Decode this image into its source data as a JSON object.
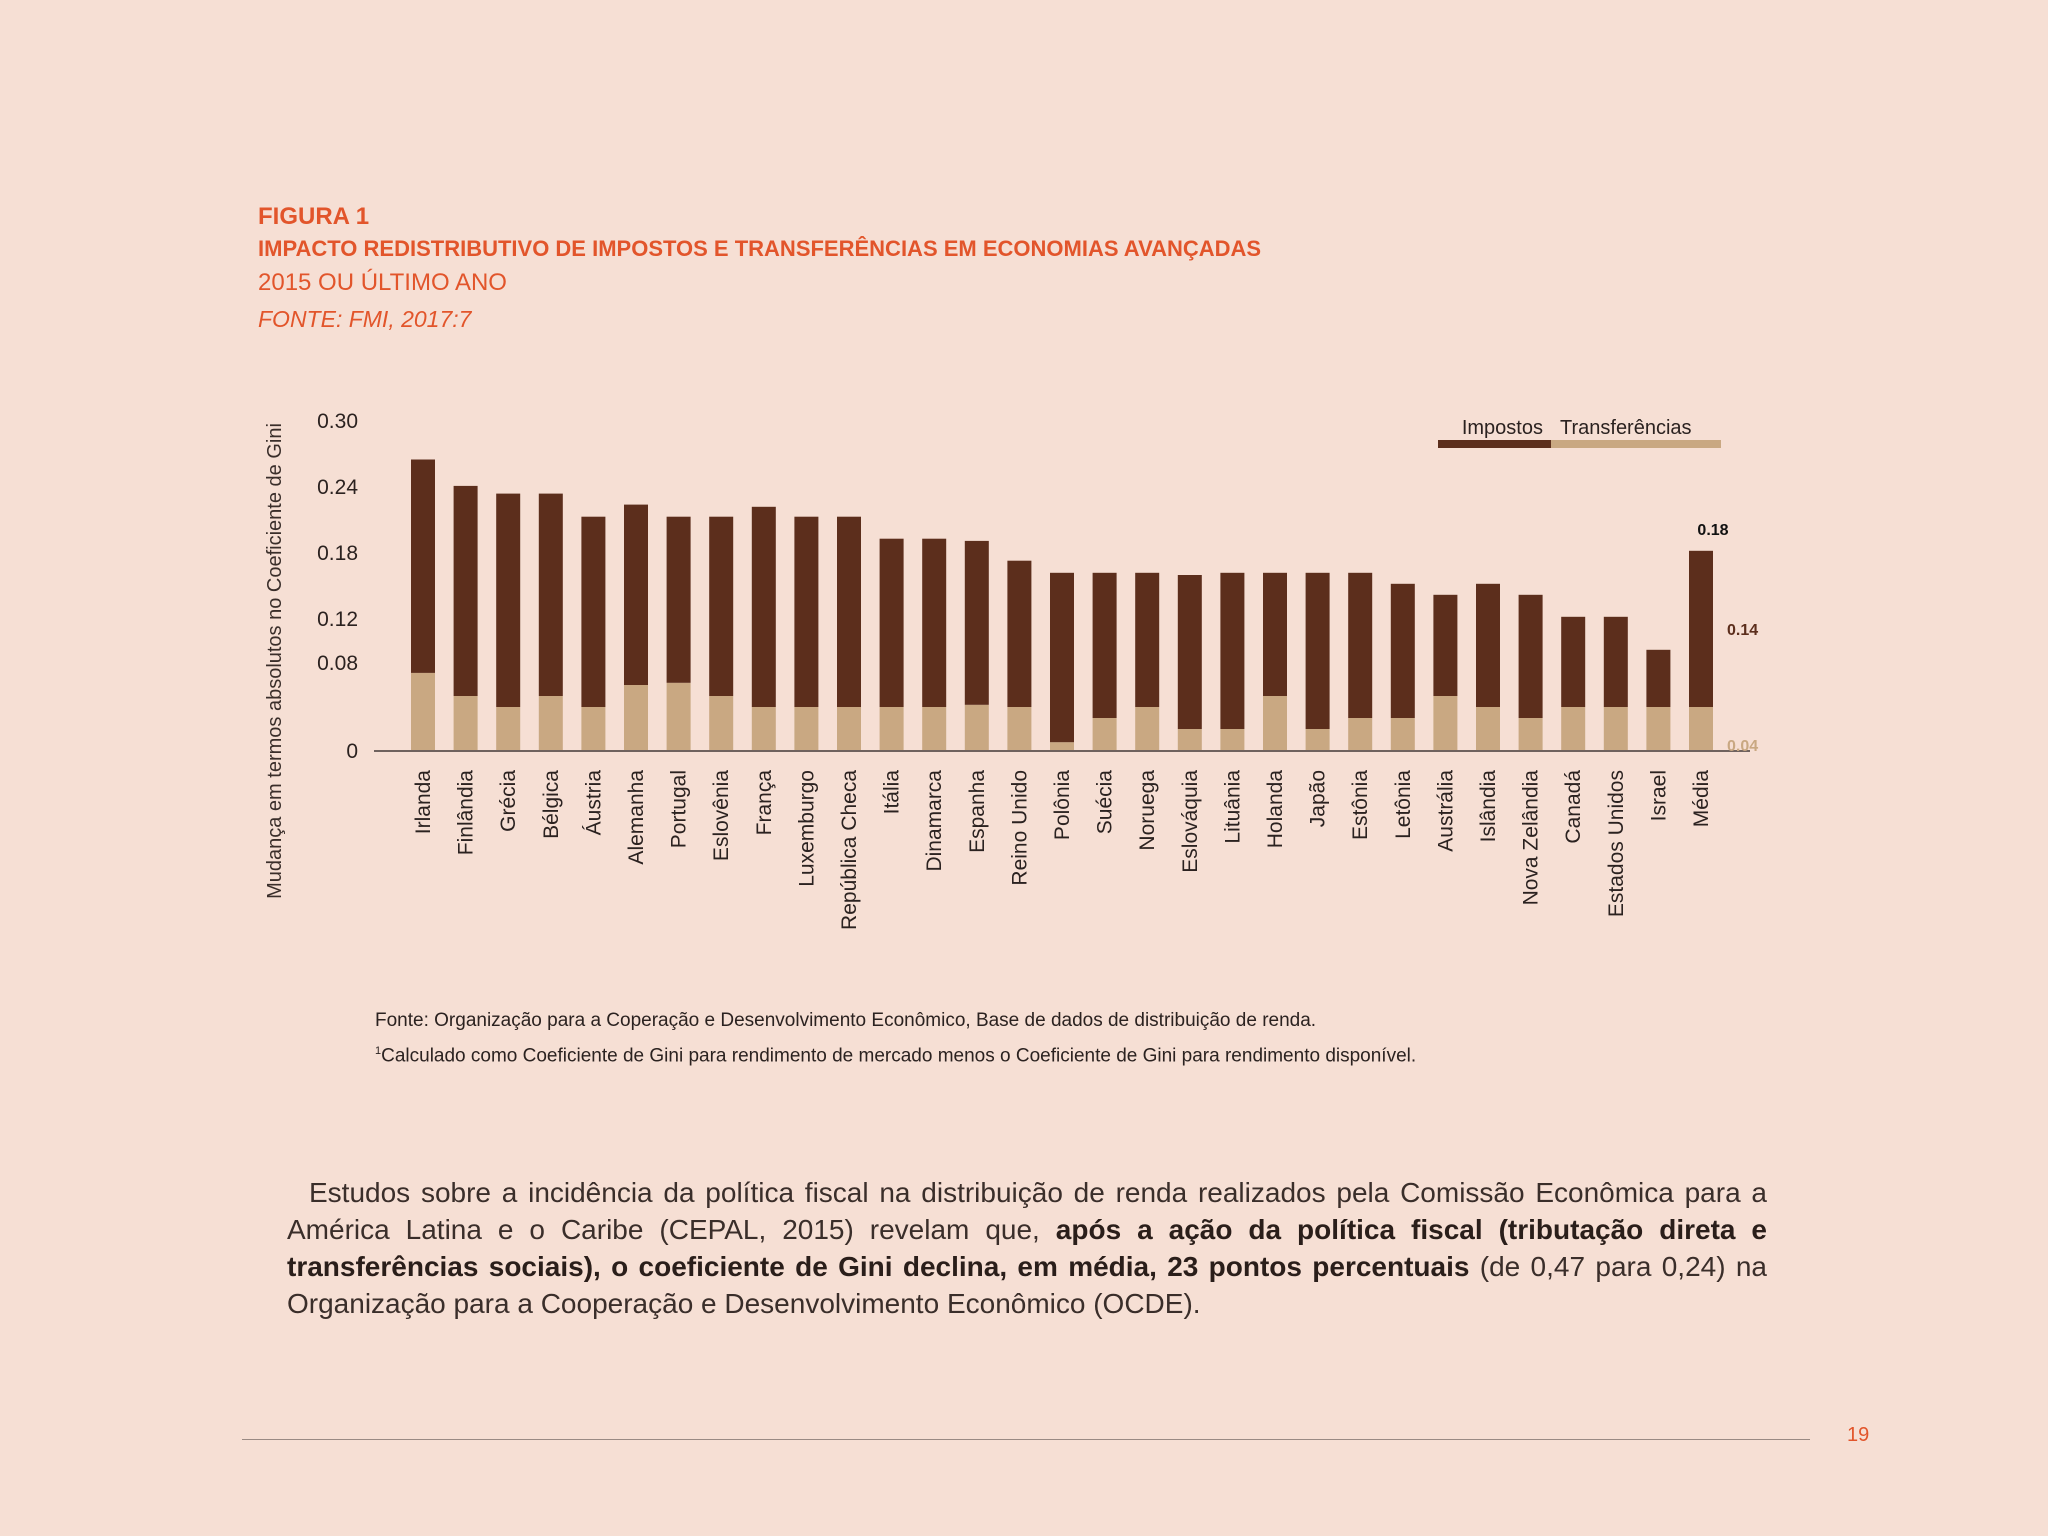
{
  "figure": {
    "label": "FIGURA 1",
    "title": "IMPACTO REDISTRIBUTIVO DE IMPOSTOS E TRANSFERÊNCIAS EM ECONOMIAS AVANÇADAS",
    "subtitle": "2015 OU ÚLTIMO ANO",
    "source": "FONTE: FMI, 2017:7"
  },
  "chart_data": {
    "type": "bar",
    "stacked": true,
    "ylabel": "Mudança em termos absolutos no Coeficiente de Gini",
    "ylim": [
      0,
      0.3
    ],
    "yticks": [
      0,
      0.08,
      0.12,
      0.18,
      0.24,
      0.3
    ],
    "ytick_labels": [
      "0",
      "0.08",
      "0.12",
      "0.18",
      "0.24",
      "0.30"
    ],
    "grid": false,
    "legend_position": "top-right",
    "categories": [
      "Irlanda",
      "Finlândia",
      "Grécia",
      "Bélgica",
      "Áustria",
      "Alemanha",
      "Portugal",
      "Eslovênia",
      "França",
      "Luxemburgo",
      "República Checa",
      "Itália",
      "Dinamarca",
      "Espanha",
      "Reino Unido",
      "Polônia",
      "Suécia",
      "Noruega",
      "Eslováquia",
      "Lituânia",
      "Holanda",
      "Japão",
      "Estônia",
      "Letônia",
      "Austrália",
      "Islândia",
      "Nova Zelândia",
      "Canadá",
      "Estados Unidos",
      "Israel",
      "Média"
    ],
    "series": [
      {
        "name": "Transferências",
        "color": "#c9a882",
        "values": [
          0.071,
          0.05,
          0.04,
          0.05,
          0.04,
          0.06,
          0.062,
          0.05,
          0.04,
          0.04,
          0.04,
          0.04,
          0.04,
          0.042,
          0.04,
          0.008,
          0.03,
          0.04,
          0.02,
          0.02,
          0.05,
          0.02,
          0.03,
          0.03,
          0.05,
          0.04,
          0.03,
          0.04,
          0.04,
          0.04,
          0.04
        ]
      },
      {
        "name": "Impostos",
        "color": "#5c2e1c",
        "values": [
          0.194,
          0.191,
          0.194,
          0.184,
          0.173,
          0.164,
          0.151,
          0.163,
          0.182,
          0.173,
          0.173,
          0.153,
          0.153,
          0.149,
          0.133,
          0.154,
          0.132,
          0.122,
          0.14,
          0.142,
          0.112,
          0.142,
          0.132,
          0.122,
          0.092,
          0.112,
          0.112,
          0.082,
          0.082,
          0.052,
          0.142
        ]
      }
    ],
    "annotations": [
      {
        "category": "Média",
        "text": "0.18",
        "meaning": "total"
      },
      {
        "category": "Média",
        "text": "0.14",
        "meaning": "Impostos"
      },
      {
        "category": "Média",
        "text": "0.04",
        "meaning": "Transferências"
      }
    ]
  },
  "notes": {
    "line1": "Fonte: Organização para a Coperação e Desenvolvimento Econômico, Base de dados de distribuição de renda.",
    "footnote_mark": "1",
    "line2": "Calculado como Coeficiente de Gini para rendimento de mercado menos o Coeficiente de Gini para rendimento disponível."
  },
  "body": {
    "part1": "Estudos sobre a incidência da política fiscal na distribuição de renda realizados pela Comissão Econômica para a América Latina e o Caribe (CEPAL, 2015) revelam que, ",
    "bold": "após a ação da política fiscal (tributação direta e transferências sociais), o coeficiente de Gini declina, em média, 23 pontos percentuais",
    "part2": " (de 0,47 para 0,24) na Organização para a Cooperação e Desenvolvimento Econômico (OCDE)."
  },
  "page_number": "19",
  "colors": {
    "background": "#f6dfd4",
    "accent": "#e2552b",
    "impostos": "#5c2e1c",
    "transferencias": "#c9a882"
  }
}
